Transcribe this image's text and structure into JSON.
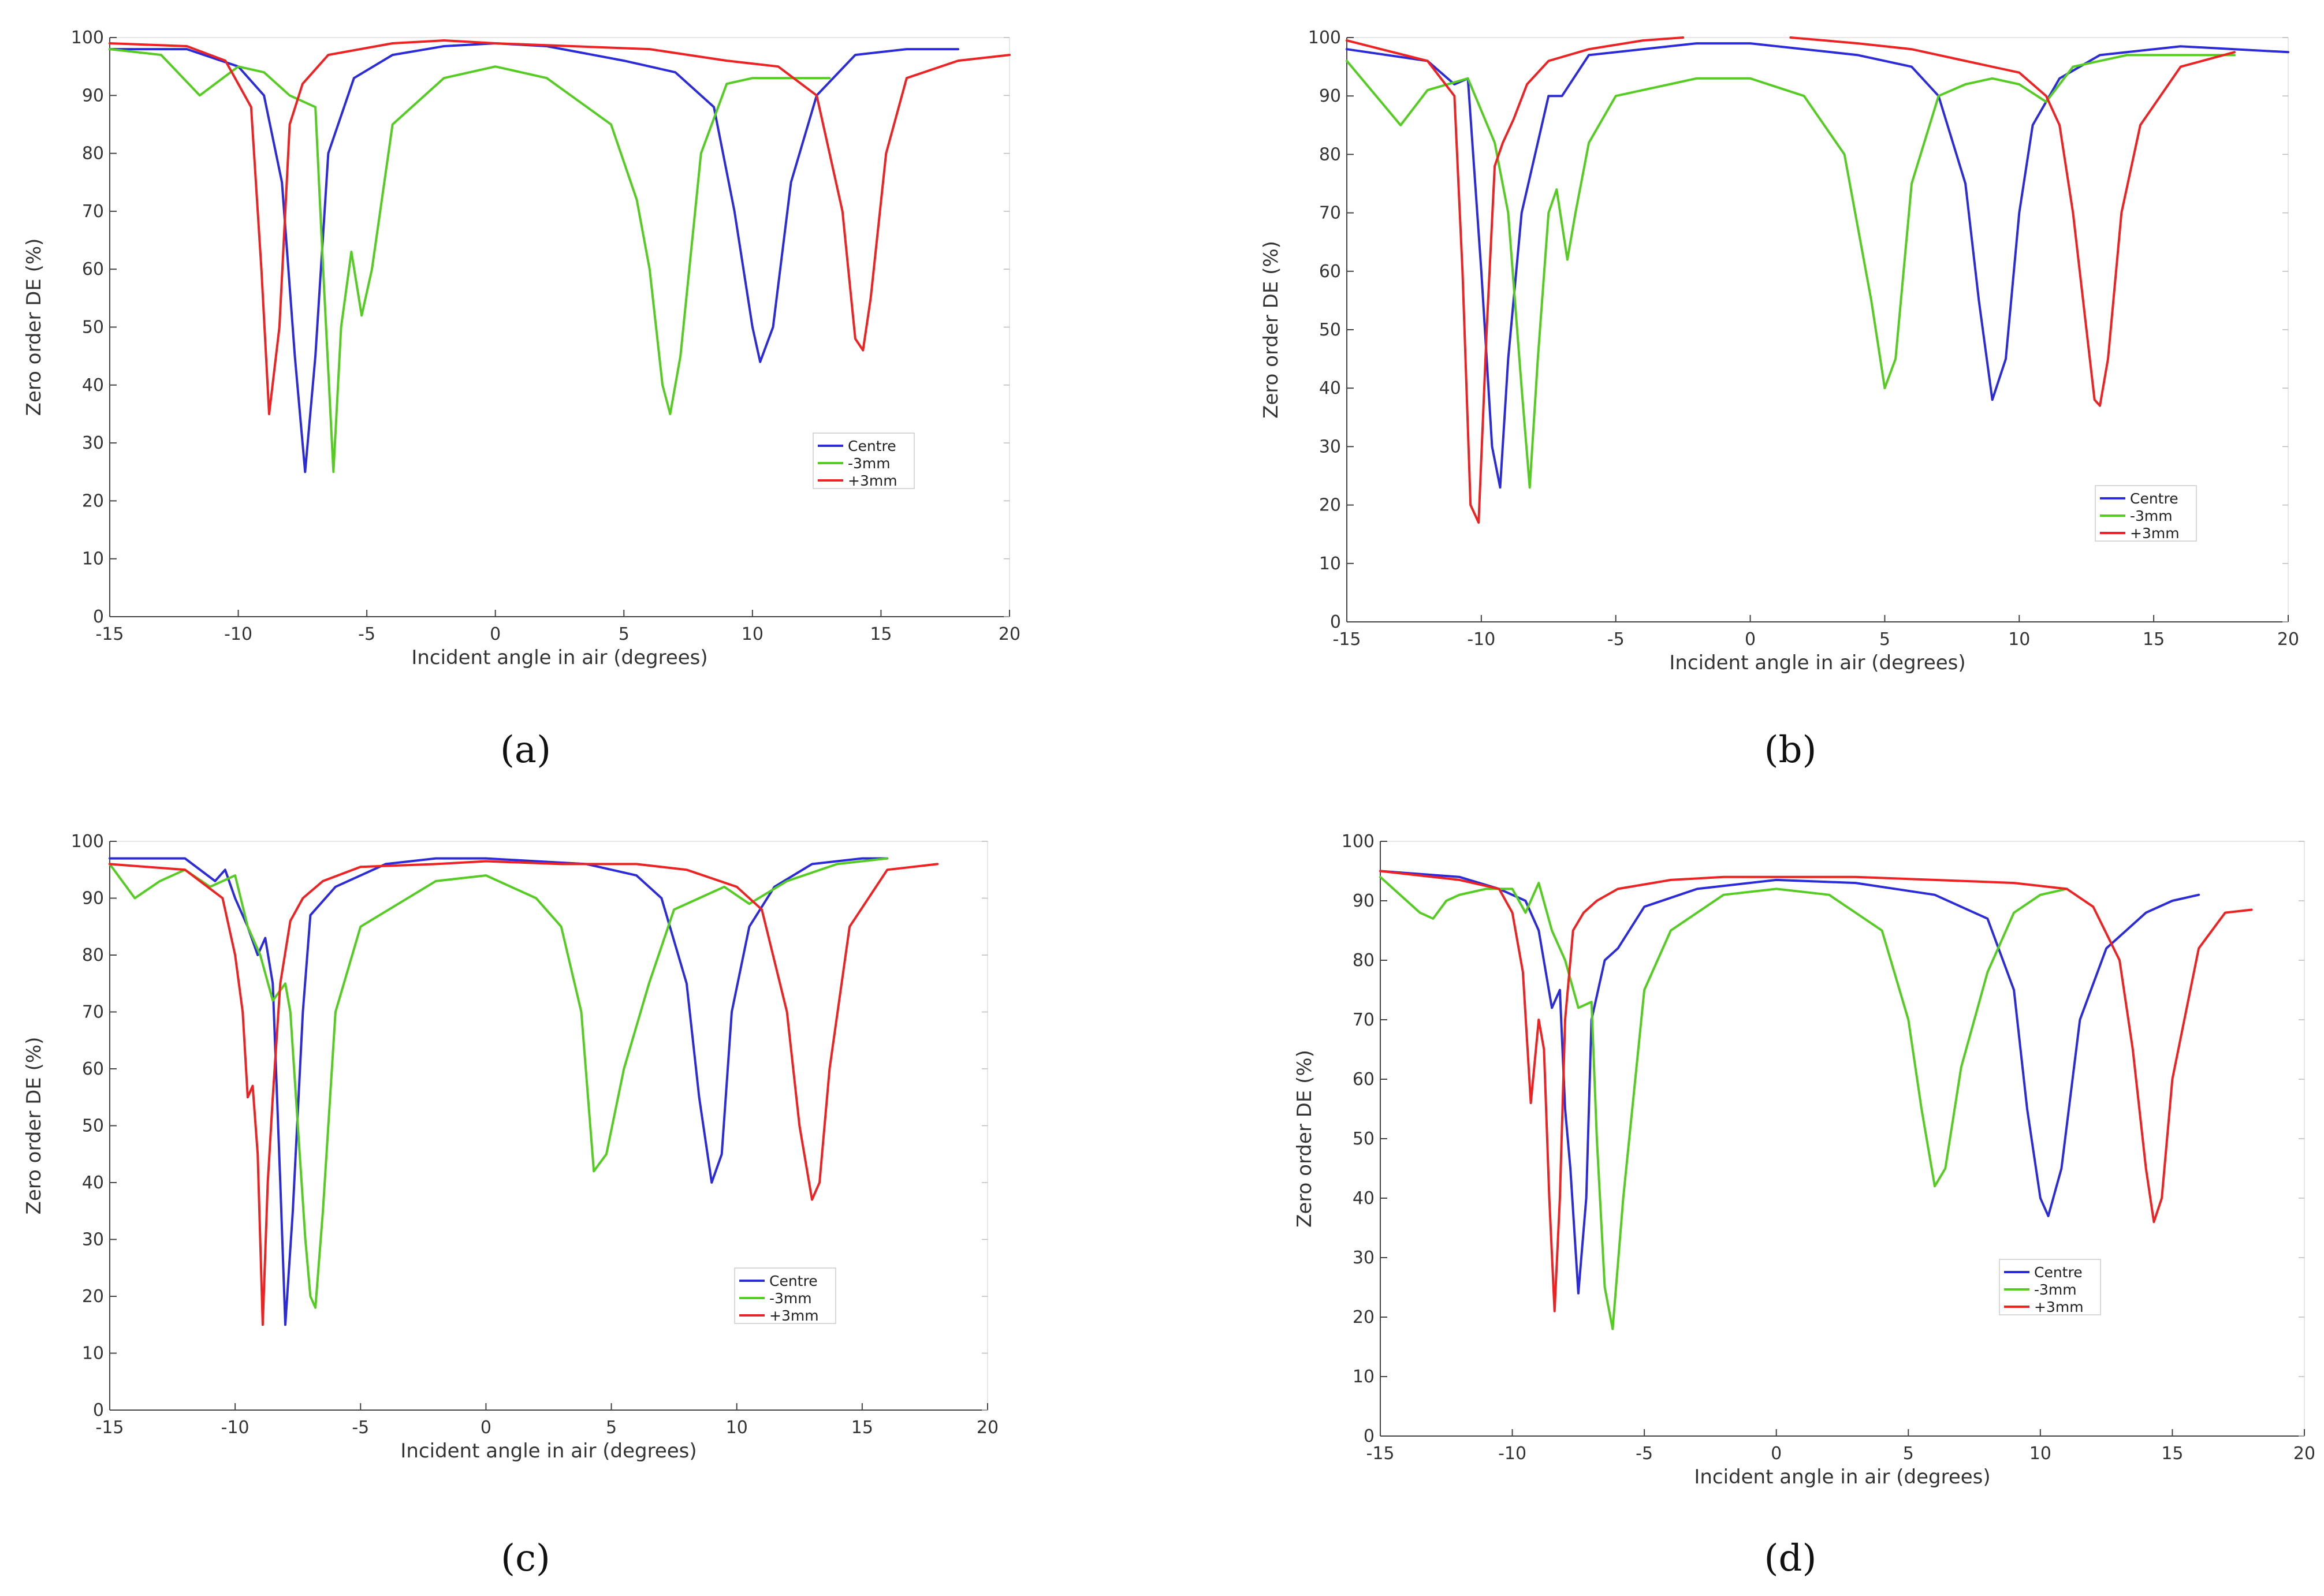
{
  "chart_data": [
    {
      "panel": "a",
      "label": "(a)",
      "type": "line",
      "xlabel": "Incident angle in air (degrees)",
      "ylabel": "Zero order DE (%)",
      "xlim": [
        -15,
        20
      ],
      "ylim": [
        0,
        100
      ],
      "xticks": [
        -15,
        -10,
        -5,
        0,
        5,
        10,
        15,
        20
      ],
      "yticks": [
        0,
        10,
        20,
        30,
        40,
        50,
        60,
        70,
        80,
        90,
        100
      ],
      "legend": [
        "Centre",
        "-3mm",
        "+3mm"
      ],
      "series": [
        {
          "name": "Centre",
          "color": "#2b2bd9",
          "x": [
            -15,
            -12,
            -10,
            -9,
            -8.3,
            -7.8,
            -7.4,
            -7,
            -6.5,
            -5.5,
            -4,
            -2,
            0,
            2,
            5,
            7,
            8.5,
            9.3,
            10,
            10.3,
            10.8,
            11.5,
            12.5,
            14,
            16,
            18
          ],
          "y": [
            98,
            98,
            95,
            90,
            75,
            45,
            25,
            45,
            80,
            93,
            97,
            98.5,
            99,
            98.5,
            96,
            94,
            88,
            70,
            50,
            44,
            50,
            75,
            90,
            97,
            98,
            98
          ]
        },
        {
          "name": "-3mm",
          "color": "#55cc22",
          "x": [
            -15,
            -13,
            -11.5,
            -10,
            -9,
            -8,
            -7,
            -6.7,
            -6.3,
            -6,
            -5.6,
            -5.2,
            -4.8,
            -4,
            -2,
            0,
            2,
            4.5,
            5.5,
            6,
            6.5,
            6.8,
            7.2,
            8,
            9,
            10,
            12,
            13
          ],
          "y": [
            98,
            97,
            90,
            95,
            94,
            90,
            88,
            60,
            25,
            50,
            63,
            52,
            60,
            85,
            93,
            95,
            93,
            85,
            72,
            60,
            40,
            35,
            45,
            80,
            92,
            93,
            93,
            93
          ]
        },
        {
          "name": "+3mm",
          "color": "#ee2222",
          "x": [
            -15,
            -12,
            -10.5,
            -9.5,
            -9.1,
            -8.8,
            -8.4,
            -8,
            -7.5,
            -6.5,
            -4,
            -2,
            0,
            3,
            6,
            9,
            11,
            12.5,
            13.5,
            14,
            14.3,
            14.6,
            15.2,
            16,
            18,
            20
          ],
          "y": [
            99,
            98.5,
            96,
            88,
            60,
            35,
            50,
            85,
            92,
            97,
            99,
            99.5,
            99,
            98.5,
            98,
            96,
            95,
            90,
            70,
            48,
            46,
            55,
            80,
            93,
            96,
            97
          ]
        }
      ]
    },
    {
      "panel": "b",
      "label": "(b)",
      "type": "line",
      "xlabel": "Incident angle in air (degrees)",
      "ylabel": "Zero order DE (%)",
      "xlim": [
        -15,
        20
      ],
      "ylim": [
        0,
        100
      ],
      "xticks": [
        -15,
        -10,
        -5,
        0,
        5,
        10,
        15,
        20
      ],
      "yticks": [
        0,
        10,
        20,
        30,
        40,
        50,
        60,
        70,
        80,
        90,
        100
      ],
      "legend": [
        "Centre",
        "-3mm",
        "+3mm"
      ],
      "series": [
        {
          "name": "Centre",
          "color": "#2b2bd9",
          "x": [
            -15,
            -12,
            -11,
            -10.5,
            -10,
            -9.6,
            -9.3,
            -9,
            -8.5,
            -8,
            -7.5,
            -7,
            -6,
            -4,
            -2,
            0,
            2,
            4,
            6,
            7,
            8,
            8.5,
            9,
            9.5,
            10,
            10.5,
            11.5,
            13,
            16,
            18,
            20
          ],
          "y": [
            98,
            96,
            92,
            93,
            60,
            30,
            23,
            45,
            70,
            80,
            90,
            90,
            97,
            98,
            99,
            99,
            98,
            97,
            95,
            90,
            75,
            55,
            38,
            45,
            70,
            85,
            93,
            97,
            98.5,
            98,
            97.5
          ]
        },
        {
          "name": "-3mm",
          "color": "#55cc22",
          "x": [
            -15,
            -13,
            -12,
            -10.5,
            -9.5,
            -9,
            -8.5,
            -8.2,
            -7.9,
            -7.5,
            -7.2,
            -6.8,
            -6.5,
            -6,
            -5,
            -2,
            0,
            2,
            3.5,
            4.5,
            5,
            5.4,
            6,
            7,
            8,
            9,
            10,
            11,
            12,
            14,
            18
          ],
          "y": [
            96,
            85,
            91,
            93,
            82,
            70,
            40,
            23,
            45,
            70,
            74,
            62,
            70,
            82,
            90,
            93,
            93,
            90,
            80,
            55,
            40,
            45,
            75,
            90,
            92,
            93,
            92,
            89,
            95,
            97,
            97
          ]
        },
        {
          "name": "+3mm",
          "color": "#ee2222",
          "x": [
            -15,
            -12,
            -11,
            -10.7,
            -10.4,
            -10.1,
            -9.8,
            -9.5,
            -9.2,
            -8.8,
            -8.3,
            -7.5,
            -6,
            -4,
            -2.5
          ],
          "y": [
            99.5,
            96,
            90,
            60,
            20,
            17,
            50,
            78,
            82,
            86,
            92,
            96,
            98,
            99.5,
            100
          ]
        },
        {
          "name": "+3mm-cont",
          "color": "#ee2222",
          "x": [
            1.5,
            4,
            6,
            8,
            10,
            11,
            11.5,
            12,
            12.5,
            12.8,
            13,
            13.3,
            13.8,
            14.5,
            16,
            18
          ],
          "y": [
            100,
            99,
            98,
            96,
            94,
            90,
            85,
            70,
            50,
            38,
            37,
            45,
            70,
            85,
            95,
            97.5
          ]
        }
      ]
    },
    {
      "panel": "c",
      "label": "(c)",
      "type": "line",
      "xlabel": "Incident angle in air (degrees)",
      "ylabel": "Zero order DE (%)",
      "xlim": [
        -15,
        20
      ],
      "ylim": [
        0,
        100
      ],
      "xticks": [
        -15,
        -10,
        -5,
        0,
        5,
        10,
        15,
        20
      ],
      "yticks": [
        0,
        10,
        20,
        30,
        40,
        50,
        60,
        70,
        80,
        90,
        100
      ],
      "legend": [
        "Centre",
        "-3mm",
        "+3mm"
      ],
      "series": [
        {
          "name": "Centre",
          "color": "#2b2bd9",
          "x": [
            -15,
            -12,
            -10.8,
            -10.4,
            -10,
            -9.5,
            -9.1,
            -8.8,
            -8.5,
            -8.2,
            -8,
            -7.7,
            -7.3,
            -7,
            -6,
            -4,
            -2,
            0,
            2,
            4,
            6,
            7,
            8,
            8.5,
            9,
            9.4,
            9.8,
            10.5,
            11.5,
            13,
            15,
            16
          ],
          "y": [
            97,
            97,
            93,
            95,
            90,
            85,
            80,
            83,
            75,
            40,
            15,
            35,
            70,
            87,
            92,
            96,
            97,
            97,
            96.5,
            96,
            94,
            90,
            75,
            55,
            40,
            45,
            70,
            85,
            92,
            96,
            97,
            97
          ]
        },
        {
          "name": "-3mm",
          "color": "#55cc22",
          "x": [
            -15,
            -14,
            -13,
            -12,
            -11,
            -10,
            -9.5,
            -9,
            -8.5,
            -8,
            -7.8,
            -7.5,
            -7.2,
            -7,
            -6.8,
            -6.5,
            -6,
            -5,
            -2,
            0,
            2,
            3,
            3.8,
            4.3,
            4.8,
            5.5,
            6.5,
            7.5,
            8.5,
            9.5,
            10.5,
            12,
            14,
            16
          ],
          "y": [
            96,
            90,
            93,
            95,
            92,
            94,
            85,
            80,
            72,
            75,
            70,
            50,
            30,
            20,
            18,
            35,
            70,
            85,
            93,
            94,
            90,
            85,
            70,
            42,
            45,
            60,
            75,
            88,
            90,
            92,
            89,
            93,
            96,
            97
          ]
        },
        {
          "name": "+3mm",
          "color": "#ee2222",
          "x": [
            -15,
            -12,
            -10.5,
            -10,
            -9.7,
            -9.5,
            -9.3,
            -9.1,
            -8.9,
            -8.7,
            -8.5,
            -8.2,
            -7.8,
            -7.3,
            -6.5,
            -5,
            -2,
            0,
            3,
            6,
            8,
            10,
            11,
            12,
            12.5,
            13,
            13.3,
            13.7,
            14.5,
            16,
            18
          ],
          "y": [
            96,
            95,
            90,
            80,
            70,
            55,
            57,
            45,
            15,
            40,
            55,
            75,
            86,
            90,
            93,
            95.5,
            96,
            96.5,
            96,
            96,
            95,
            92,
            88,
            70,
            50,
            37,
            40,
            60,
            85,
            95,
            96
          ]
        }
      ]
    },
    {
      "panel": "d",
      "label": "(d)",
      "type": "line",
      "xlabel": "Incident angle in air (degrees)",
      "ylabel": "Zero order DE (%)",
      "xlim": [
        -15,
        20
      ],
      "ylim": [
        0,
        100
      ],
      "xticks": [
        -15,
        -10,
        -5,
        0,
        5,
        10,
        15,
        20
      ],
      "yticks": [
        0,
        10,
        20,
        30,
        40,
        50,
        60,
        70,
        80,
        90,
        100
      ],
      "legend": [
        "Centre",
        "-3mm",
        "+3mm"
      ],
      "series": [
        {
          "name": "Centre",
          "color": "#2b2bd9",
          "x": [
            -15,
            -12,
            -10.5,
            -9.5,
            -9,
            -8.5,
            -8.2,
            -8,
            -7.8,
            -7.5,
            -7.2,
            -7,
            -6.5,
            -6,
            -5,
            -3,
            0,
            3,
            6,
            8,
            9,
            9.5,
            10,
            10.3,
            10.8,
            11.5,
            12.5,
            14,
            15,
            16
          ],
          "y": [
            95,
            94,
            92,
            90,
            85,
            72,
            75,
            55,
            45,
            24,
            40,
            70,
            80,
            82,
            89,
            92,
            93.5,
            93,
            91,
            87,
            75,
            55,
            40,
            37,
            45,
            70,
            82,
            88,
            90,
            91
          ]
        },
        {
          "name": "-3mm",
          "color": "#55cc22",
          "x": [
            -15,
            -14,
            -13.5,
            -13,
            -12.5,
            -12,
            -11,
            -10,
            -9.5,
            -9,
            -8.5,
            -8,
            -7.5,
            -7,
            -6.8,
            -6.5,
            -6.2,
            -5.8,
            -5,
            -4,
            -2,
            0,
            2,
            3,
            4,
            5,
            5.5,
            6,
            6.4,
            7,
            8,
            9,
            10,
            11
          ],
          "y": [
            94,
            90,
            88,
            87,
            90,
            91,
            92,
            92,
            88,
            93,
            85,
            80,
            72,
            73,
            50,
            25,
            18,
            40,
            75,
            85,
            91,
            92,
            91,
            88,
            85,
            70,
            55,
            42,
            45,
            62,
            78,
            88,
            91,
            92
          ]
        },
        {
          "name": "+3mm",
          "color": "#ee2222",
          "x": [
            -15,
            -12,
            -10.5,
            -10,
            -9.6,
            -9.3,
            -9,
            -8.8,
            -8.6,
            -8.4,
            -8.2,
            -8,
            -7.7,
            -7.3,
            -6.8,
            -6,
            -4,
            -2,
            0,
            3,
            6,
            9,
            11,
            12,
            13,
            13.5,
            14,
            14.3,
            14.6,
            15,
            16,
            17,
            18
          ],
          "y": [
            95,
            93.5,
            92,
            88,
            78,
            56,
            70,
            65,
            40,
            21,
            40,
            70,
            85,
            88,
            90,
            92,
            93.5,
            94,
            94,
            94,
            93.5,
            93,
            92,
            89,
            80,
            65,
            45,
            36,
            40,
            60,
            82,
            88,
            88.5
          ]
        }
      ]
    }
  ],
  "colors": {
    "centre": "#2b2bd9",
    "minus3mm": "#55cc22",
    "plus3mm": "#ee2222",
    "axis": "#333333"
  }
}
